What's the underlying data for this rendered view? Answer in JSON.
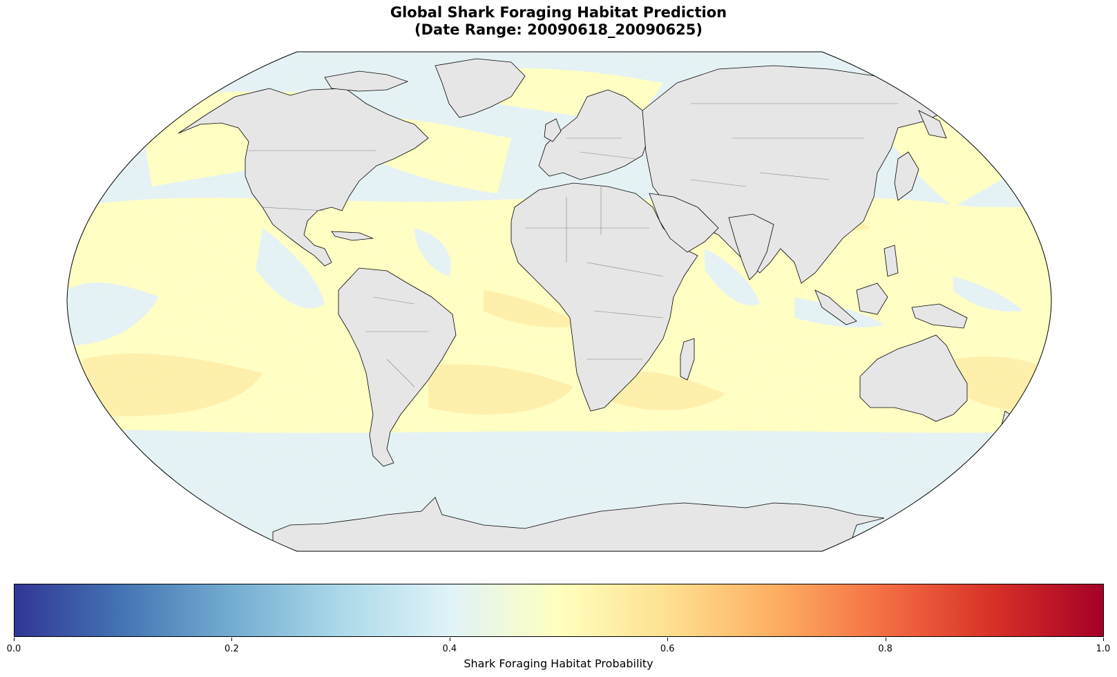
{
  "title_line1": "Global Shark Foraging Habitat Prediction",
  "title_line2": "(Date Range: 20090618_20090625)",
  "colorbar": {
    "label": "Shark Foraging Habitat Probability",
    "colormap": "RdYlBu_r",
    "stops": [
      "#313695",
      "#4575b4",
      "#74add1",
      "#abd9e9",
      "#e0f3f8",
      "#ffffbf",
      "#fee090",
      "#fdae61",
      "#f46d43",
      "#d73027",
      "#a50026"
    ],
    "ticks": [
      "0.0",
      "0.2",
      "0.4",
      "0.6",
      "0.8",
      "1.0"
    ],
    "range": [
      0.0,
      1.0
    ]
  },
  "map": {
    "projection": "Robinson",
    "land_color": "#e6e6e6",
    "ocean_low_color": "#e4f2f7",
    "ocean_mid_color": "#ffffbf",
    "ocean_high_color": "#fee89a",
    "coastline_color": "#000000",
    "border_color": "#808080"
  }
}
